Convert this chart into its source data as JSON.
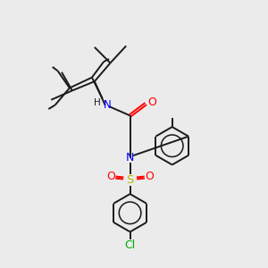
{
  "bg_color": "#ebebeb",
  "bond_color": "#1a1a1a",
  "N_color": "#0000ff",
  "O_color": "#ff0000",
  "S_color": "#b8b800",
  "Cl_color": "#00aa00",
  "lw": 1.4,
  "xlim": [
    0,
    10
  ],
  "ylim": [
    0,
    10
  ]
}
